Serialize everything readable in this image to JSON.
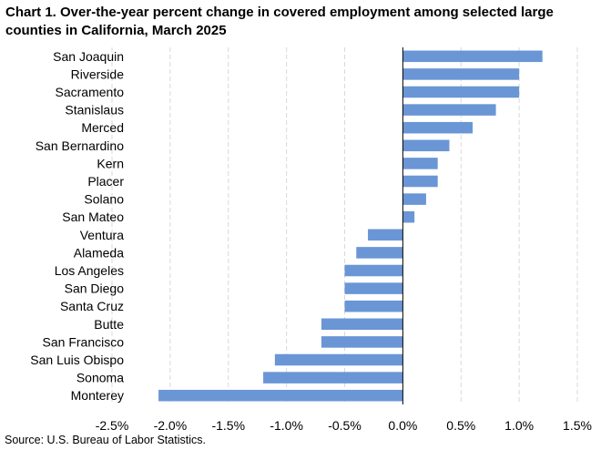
{
  "chart_data": {
    "type": "bar",
    "orientation": "horizontal",
    "title": "Chart 1. Over-the-year percent change in covered employment among selected large counties in California, March 2025",
    "categories": [
      "San Joaquin",
      "Riverside",
      "Sacramento",
      "Stanislaus",
      "Merced",
      "San Bernardino",
      "Kern",
      "Placer",
      "Solano",
      "San Mateo",
      "Ventura",
      "Alameda",
      "Los Angeles",
      "San Diego",
      "Santa Cruz",
      "Butte",
      "San Francisco",
      "San Luis Obispo",
      "Sonoma",
      "Monterey"
    ],
    "values": [
      1.2,
      1.0,
      1.0,
      0.8,
      0.6,
      0.4,
      0.3,
      0.3,
      0.2,
      0.1,
      -0.3,
      -0.4,
      -0.5,
      -0.5,
      -0.5,
      -0.7,
      -0.7,
      -1.1,
      -1.2,
      -2.1
    ],
    "xlim": [
      -2.5,
      1.5
    ],
    "xticks": [
      -2.5,
      -2.0,
      -1.5,
      -1.0,
      -0.5,
      0.0,
      0.5,
      1.0,
      1.5
    ],
    "xtick_labels": [
      "-2.5%",
      "-2.0%",
      "-1.5%",
      "-1.0%",
      "-0.5%",
      "0.0%",
      "0.5%",
      "1.0%",
      "1.5%"
    ],
    "xlabel": "",
    "ylabel": "",
    "grid": "vertical-dashed",
    "bar_color": "#6a96d6",
    "source": "Source: U.S. Bureau of Labor Statistics."
  }
}
